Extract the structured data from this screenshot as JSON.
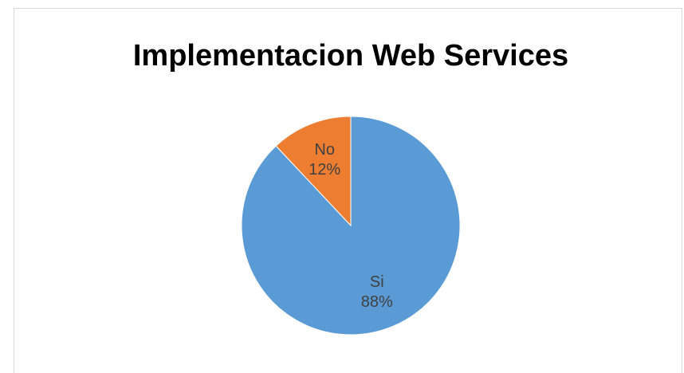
{
  "chart_data": {
    "type": "pie",
    "title": "Implementacion Web Services",
    "categories": [
      "Si",
      "No"
    ],
    "values": [
      88,
      12
    ],
    "value_labels": [
      "88%",
      "12%"
    ],
    "colors": [
      "#5b9bd5",
      "#ed7d31"
    ]
  }
}
